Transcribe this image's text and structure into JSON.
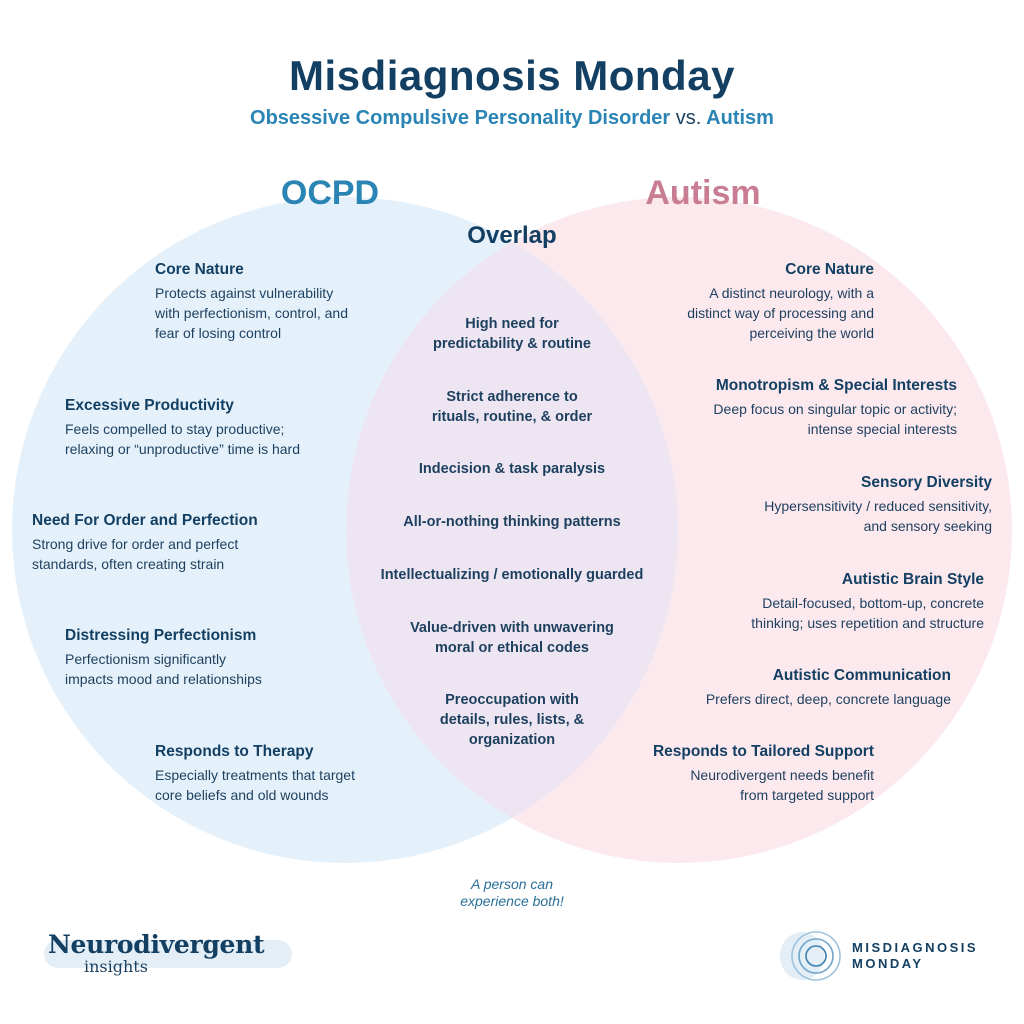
{
  "header": {
    "title": "Misdiagnosis Monday",
    "subtitle_left": "Obsessive Compulsive Personality Disorder",
    "subtitle_vs": "vs.",
    "subtitle_right": "Autism"
  },
  "colors": {
    "ocpd_fill": "#e4f1fb",
    "autism_fill": "#fbe9ee",
    "overlap_fill": "#ede6f2",
    "ocpd_accent": "#2a84b4",
    "autism_accent": "#c97d93",
    "navy": "#133f62"
  },
  "sets": {
    "ocpd_label": "OCPD",
    "autism_label": "Autism",
    "overlap_label": "Overlap"
  },
  "ocpd_items": [
    {
      "heading": "Core Nature",
      "text": "Protects against vulnerability\nwith perfectionism, control, and\nfear of losing control"
    },
    {
      "heading": "Excessive Productivity",
      "text": "Feels compelled to stay productive;\nrelaxing or “unproductive” time is hard"
    },
    {
      "heading": "Need For Order and Perfection",
      "text": "Strong drive for order and perfect\nstandards, often creating strain"
    },
    {
      "heading": "Distressing Perfectionism",
      "text": "Perfectionism significantly\nimpacts mood and relationships"
    },
    {
      "heading": "Responds to Therapy",
      "text": "Especially treatments that target\ncore beliefs and old wounds"
    }
  ],
  "overlap_items": [
    "High need for\npredictability & routine",
    "Strict adherence to\nrituals, routine, & order",
    "Indecision & task paralysis",
    "All-or-nothing thinking patterns",
    "Intellectualizing / emotionally guarded",
    "Value-driven with unwavering\nmoral or ethical codes",
    "Preoccupation with\ndetails, rules, lists, &\norganization"
  ],
  "autism_items": [
    {
      "heading": "Core Nature",
      "text": "A distinct neurology, with a\ndistinct way of processing and\nperceiving the world"
    },
    {
      "heading": "Monotropism & Special Interests",
      "text": "Deep focus on singular topic or activity;\nintense special interests"
    },
    {
      "heading": "Sensory Diversity",
      "text": "Hypersensitivity / reduced sensitivity,\nand sensory seeking"
    },
    {
      "heading": "Autistic Brain Style",
      "text": "Detail-focused, bottom-up, concrete\nthinking; uses repetition and structure"
    },
    {
      "heading": "Autistic Communication",
      "text": "Prefers direct, deep, concrete language"
    },
    {
      "heading": "Responds to Tailored Support",
      "text": "Neurodivergent needs benefit\nfrom targeted support"
    }
  ],
  "footnote": "A person can\nexperience both!",
  "brands": {
    "left_top": "Neurodivergent",
    "left_bottom": "insights",
    "right": "MISDIAGNOSIS\nMONDAY",
    "right_icon": "concentric-circles-logo"
  }
}
